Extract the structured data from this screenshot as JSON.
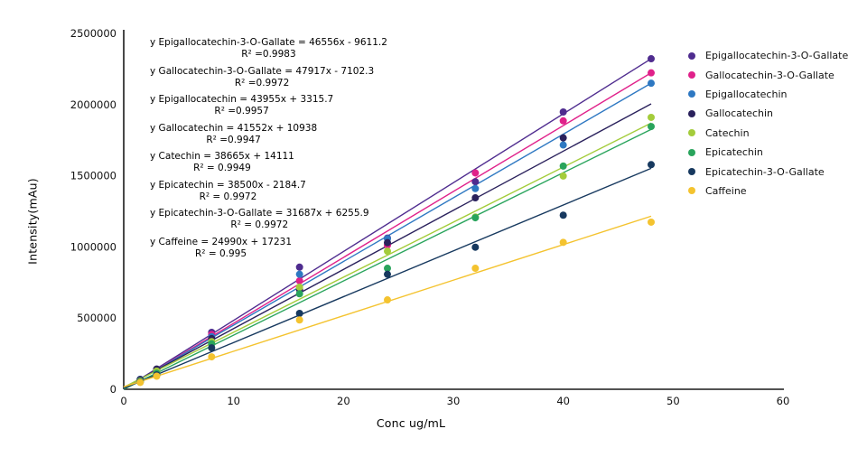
{
  "chart_data": {
    "type": "scatter",
    "title": "",
    "xlabel": "Conc ug/mL",
    "ylabel": "Intensity(mAu)",
    "xlim": [
      0,
      60
    ],
    "ylim": [
      0,
      2500000
    ],
    "x_ticks": [
      0,
      10,
      20,
      30,
      40,
      50,
      60
    ],
    "y_ticks": [
      0,
      500000,
      1000000,
      1500000,
      2000000,
      2500000
    ],
    "grid": false,
    "legend_position": "right",
    "concentrations": [
      1.5,
      3,
      8,
      16,
      24,
      32,
      40,
      48
    ],
    "series": [
      {
        "name": "Epigallocatechin-3-O-Gallate",
        "color": "#4f2c8f",
        "slope": 46556,
        "intercept": -9611.2,
        "r2": 0.9983,
        "equation": "y Epigallocatechin-3-O-Gallate = 46556x - 9611.2",
        "r2_label": "R² =0.9983",
        "values": [
          62000,
          130000,
          400000,
          858000,
          1062000,
          1458000,
          1948000,
          2322000
        ],
        "line_end": 2322000
      },
      {
        "name": "Gallocatechin-3-O-Gallate",
        "color": "#e0218a",
        "slope": 47917,
        "intercept": -7102.3,
        "r2": 0.9972,
        "equation": "y Gallocatechin-3-O-Gallate = 47917x - 7102.3",
        "r2_label": "R² =0.9972",
        "values": [
          66000,
          140000,
          385000,
          762000,
          1012000,
          1520000,
          1886000,
          2223000
        ],
        "line_end": 2223000
      },
      {
        "name": "Epigallocatechin",
        "color": "#2e78c2",
        "slope": 43955,
        "intercept": 3315.7,
        "r2": 0.9957,
        "equation": "y Epigallocatechin = 43955x + 3315.7",
        "r2_label": "R² =0.9957",
        "values": [
          70000,
          136000,
          370000,
          808000,
          1058000,
          1410000,
          1716000,
          2150000
        ],
        "line_end": 2150000
      },
      {
        "name": "Gallocatechin",
        "color": "#2a215c",
        "slope": 41552,
        "intercept": 10938,
        "r2": 0.9947,
        "equation": "y Gallocatechin = 41552x + 10938",
        "r2_label": "R² =0.9947",
        "values": [
          68000,
          142000,
          356000,
          700000,
          1030000,
          1345000,
          1766000,
          null
        ],
        "line_end": 2005000
      },
      {
        "name": "Catechin",
        "color": "#a4cc3b",
        "slope": 38665,
        "intercept": 14111,
        "r2": 0.9949,
        "equation": "y Catechin = 38665x + 14111",
        "r2_label": "R² = 0.9949",
        "values": [
          58000,
          128000,
          335000,
          717000,
          970000,
          1210000,
          1498000,
          1910000
        ],
        "line_end": 1870000
      },
      {
        "name": "Epicatechin",
        "color": "#29a45c",
        "slope": 38500,
        "intercept": -2184.7,
        "r2": 0.9972,
        "equation": "y Epicatechin = 38500x - 2184.7",
        "r2_label": "R² = 0.9972",
        "values": [
          55000,
          113000,
          320000,
          671000,
          850000,
          1205000,
          1568000,
          1846000
        ],
        "line_end": 1826000
      },
      {
        "name": "Epicatechin-3-O-Gallate",
        "color": "#17395f",
        "slope": 31687,
        "intercept": 6255.9,
        "r2": 0.9972,
        "equation": "y Epicatechin-3-O-Gallate = 31687x + 6255.9",
        "r2_label": "R² = 0.9972",
        "values": [
          50000,
          101000,
          291000,
          533000,
          808000,
          998000,
          1223000,
          1578000
        ],
        "line_end": 1552000
      },
      {
        "name": "Caffeine",
        "color": "#f4c32f",
        "slope": 24990,
        "intercept": 17231,
        "r2": 0.995,
        "equation": "y Caffeine = 24990x + 17231",
        "r2_label": "R² = 0.995",
        "values": [
          48000,
          92000,
          228000,
          487000,
          628000,
          850000,
          1032000,
          1174000
        ],
        "line_end": 1216000
      }
    ]
  }
}
